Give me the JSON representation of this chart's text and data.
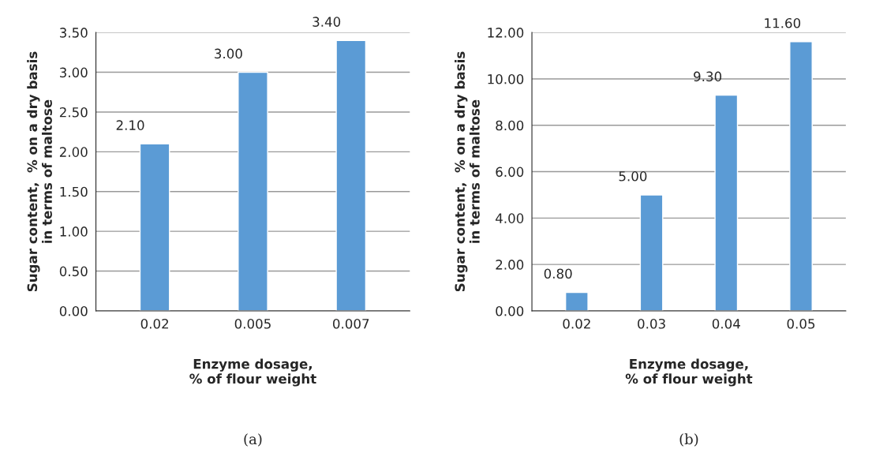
{
  "chart_data": [
    {
      "type": "bar",
      "xlabel": "Enzyme dosage,\n% of flour weight",
      "ylabel": "Sugar content,  % on a dry basis\nin terms of maltose",
      "annotations": [
        "(a)"
      ],
      "categories": [
        "0.02",
        "0.005",
        "0.007"
      ],
      "values": [
        2.1,
        3.0,
        3.4
      ],
      "value_labels": [
        "2.10",
        "3.00",
        "3.40"
      ],
      "color": "#5b9bd5",
      "ylim": [
        0,
        3.5
      ],
      "yticks": [
        {
          "value": 0,
          "label": "0.00"
        },
        {
          "value": 0.5,
          "label": "0.50"
        },
        {
          "value": 1,
          "label": "1.00"
        },
        {
          "value": 1.5,
          "label": "1.50"
        },
        {
          "value": 2,
          "label": "2.00"
        },
        {
          "value": 2.5,
          "label": "2.50"
        },
        {
          "value": 3,
          "label": "3.00"
        },
        {
          "value": 3.5,
          "label": "3.50"
        }
      ],
      "grid": "y"
    },
    {
      "type": "bar",
      "xlabel": "Enzyme dosage,\n% of flour weight",
      "ylabel": "Sugar content,  % on a dry basis\nin terms of maltose",
      "annotations": [
        "(b)"
      ],
      "categories": [
        "0.02",
        "0.03",
        "0.04",
        "0.05"
      ],
      "values": [
        0.8,
        5.0,
        9.3,
        11.6
      ],
      "value_labels": [
        "0.80",
        "5.00",
        "9.30",
        "11.60"
      ],
      "color": "#5b9bd5",
      "ylim": [
        0,
        12
      ],
      "yticks": [
        {
          "value": 0,
          "label": "0.00"
        },
        {
          "value": 2,
          "label": "2.00"
        },
        {
          "value": 4,
          "label": "4.00"
        },
        {
          "value": 6,
          "label": "6.00"
        },
        {
          "value": 8,
          "label": "8.00"
        },
        {
          "value": 10,
          "label": "10.00"
        },
        {
          "value": 12,
          "label": "12.00"
        }
      ],
      "grid": "y"
    }
  ]
}
